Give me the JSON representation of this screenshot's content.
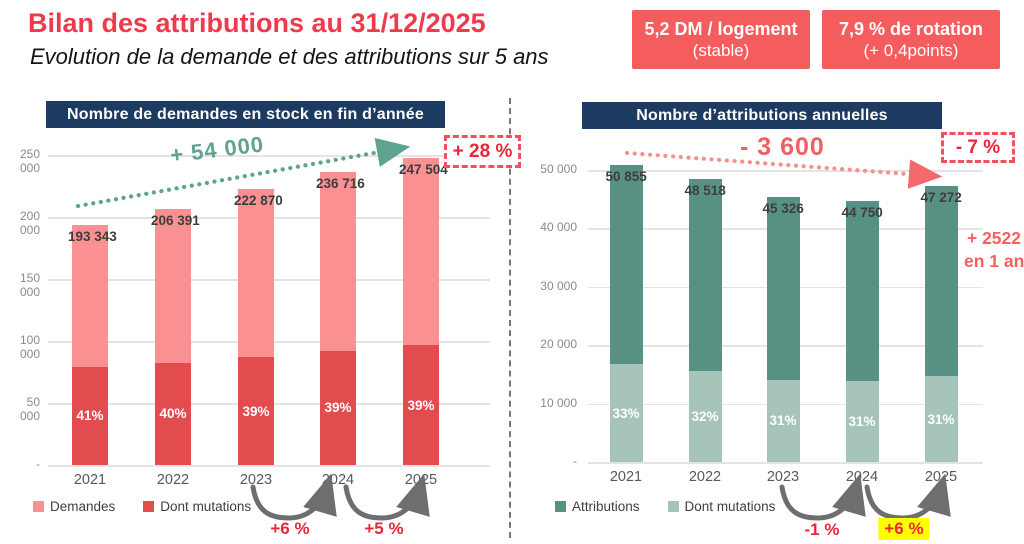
{
  "page": {
    "title": "Bilan des attributions au 31/12/2025",
    "subtitle": "Evolution de la demande et des attributions sur 5 ans"
  },
  "kpi_badges": [
    {
      "line1": "5,2 DM / logement",
      "line2": "(stable)"
    },
    {
      "line1": "7,9 % de rotation",
      "line2": "(+ 0,4points)"
    }
  ],
  "colors": {
    "title_red": "#ef3a4d",
    "badge_red": "#f45c5d",
    "header_navy": "#1d3a60",
    "annotation_red": "#ee2438",
    "trend_teal": "#5fa28f",
    "trend_coral": "#f25f63",
    "highlight_yellow": "#ffff00",
    "gridline_gray": "#e4e4e4"
  },
  "chart_data": [
    {
      "type": "bar",
      "stacked": true,
      "title": "Nombre de demandes en stock en fin d’année",
      "categories": [
        "2021",
        "2022",
        "2023",
        "2024",
        "2025"
      ],
      "totals": [
        193343,
        206391,
        222870,
        236716,
        247504
      ],
      "total_labels": [
        "193 343",
        "206 391",
        "222 870",
        "236 716",
        "247 504"
      ],
      "mutations_pct": [
        41,
        40,
        39,
        39,
        39
      ],
      "pct_labels": [
        "41%",
        "40%",
        "39%",
        "39%",
        "39%"
      ],
      "series": [
        {
          "name": "Demandes",
          "color": "#fa9091"
        },
        {
          "name": "Dont mutations",
          "color": "#e24c4e"
        }
      ],
      "ylabel": "",
      "xlabel": "",
      "ylim": [
        0,
        250000
      ],
      "grid": true,
      "legend_position": "bottom-left",
      "yticks": [
        {
          "value": 250000,
          "label": "250 000"
        },
        {
          "value": 200000,
          "label": "200 000"
        },
        {
          "value": 150000,
          "label": "150 000"
        },
        {
          "value": 100000,
          "label": "100 000"
        },
        {
          "value": 50000,
          "label": "50 000"
        },
        {
          "value": 0,
          "label": "-"
        }
      ],
      "annotations": {
        "trend_label": "+ 54 000",
        "delta_box": "+ 28 %",
        "yoy": [
          {
            "from": "2023",
            "to": "2024",
            "label": "+6 %",
            "highlight": false
          },
          {
            "from": "2024",
            "to": "2025",
            "label": "+5 %",
            "highlight": false
          }
        ]
      }
    },
    {
      "type": "bar",
      "stacked": true,
      "title": "Nombre d’attributions annuelles",
      "categories": [
        "2021",
        "2022",
        "2023",
        "2024",
        "2025"
      ],
      "totals": [
        50855,
        48518,
        45326,
        44750,
        47272
      ],
      "total_labels": [
        "50 855",
        "48 518",
        "45 326",
        "44 750",
        "47 272"
      ],
      "mutations_pct": [
        33,
        32,
        31,
        31,
        31
      ],
      "pct_labels": [
        "33%",
        "32%",
        "31%",
        "31%",
        "31%"
      ],
      "series": [
        {
          "name": "Attributions",
          "color": "#579184"
        },
        {
          "name": "Dont mutations",
          "color": "#a6c4ba"
        }
      ],
      "ylabel": "",
      "xlabel": "",
      "ylim": [
        0,
        55000
      ],
      "grid": true,
      "legend_position": "bottom-left",
      "yticks": [
        {
          "value": 50000,
          "label": "50 000"
        },
        {
          "value": 40000,
          "label": "40 000"
        },
        {
          "value": 30000,
          "label": "30 000"
        },
        {
          "value": 20000,
          "label": "20 000"
        },
        {
          "value": 10000,
          "label": "10 000"
        },
        {
          "value": 0,
          "label": "-"
        }
      ],
      "annotations": {
        "trend_label": "- 3 600",
        "delta_box": "- 7 %",
        "side_note_line1": "+ 2522",
        "side_note_line2": "en 1 an",
        "yoy": [
          {
            "from": "2023",
            "to": "2024",
            "label": "-1 %",
            "highlight": false
          },
          {
            "from": "2024",
            "to": "2025",
            "label": "+6 %",
            "highlight": true
          }
        ]
      }
    }
  ]
}
